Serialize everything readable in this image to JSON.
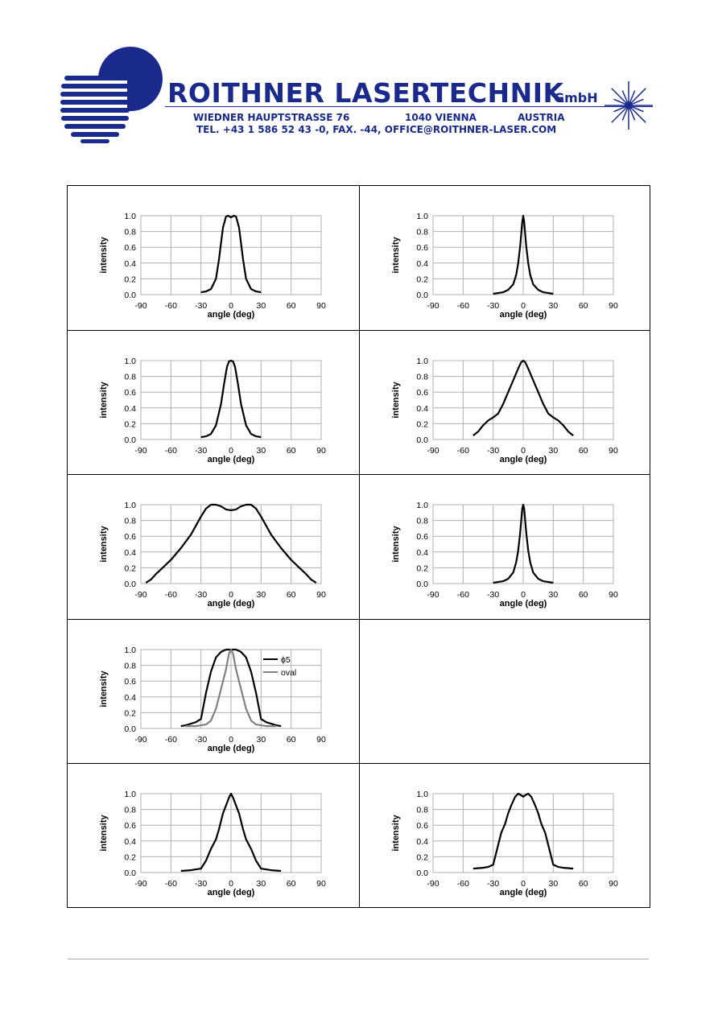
{
  "header": {
    "company": "ROITHNER LASERTECHNIK",
    "company_suffix": "GmbH",
    "street": "WIEDNER HAUPTSTRASSE 76",
    "city": "1040 VIENNA",
    "country": "AUSTRIA",
    "contact": "TEL. +43 1 586 52 43 -0, FAX. -44, OFFICE@ROITHNER-LASER.COM",
    "brand_color": "#1a2a8c"
  },
  "chart_data": [
    {
      "type": "line",
      "xlabel": "angle (deg)",
      "ylabel": "intensity",
      "xlim": [
        -90,
        90
      ],
      "ylim": [
        0,
        1.0
      ],
      "xticks": [
        "-90",
        "-60",
        "-30",
        "0",
        "30",
        "60",
        "90"
      ],
      "yticks": [
        "0.0",
        "0.2",
        "0.4",
        "0.6",
        "0.8",
        "1.0"
      ],
      "grid": true,
      "series": [
        {
          "color": "#000000",
          "x": [
            -30,
            -25,
            -20,
            -15,
            -12,
            -8,
            -5,
            -3,
            0,
            3,
            5,
            8,
            12,
            15,
            20,
            25,
            30
          ],
          "y": [
            0.03,
            0.04,
            0.07,
            0.2,
            0.45,
            0.85,
            0.99,
            1.0,
            0.98,
            1.0,
            0.99,
            0.85,
            0.45,
            0.2,
            0.07,
            0.04,
            0.03
          ]
        }
      ]
    },
    {
      "type": "line",
      "xlabel": "angle (deg)",
      "ylabel": "intensity",
      "xlim": [
        -90,
        90
      ],
      "ylim": [
        0,
        1.0
      ],
      "xticks": [
        "-90",
        "-60",
        "-30",
        "0",
        "30",
        "60",
        "90"
      ],
      "yticks": [
        "0.0",
        "0.2",
        "0.4",
        "0.6",
        "0.8",
        "1.0"
      ],
      "grid": true,
      "series": [
        {
          "color": "#000000",
          "x": [
            -30,
            -20,
            -15,
            -10,
            -7,
            -5,
            -3,
            -1,
            0,
            1,
            3,
            5,
            7,
            10,
            15,
            20,
            30
          ],
          "y": [
            0.01,
            0.03,
            0.06,
            0.13,
            0.25,
            0.4,
            0.62,
            0.92,
            1.0,
            0.92,
            0.62,
            0.4,
            0.25,
            0.13,
            0.06,
            0.03,
            0.01
          ]
        }
      ]
    },
    {
      "type": "line",
      "xlabel": "angle (deg)",
      "ylabel": "intensity",
      "xlim": [
        -90,
        90
      ],
      "ylim": [
        0,
        1.0
      ],
      "xticks": [
        "-90",
        "-60",
        "-30",
        "0",
        "30",
        "60",
        "90"
      ],
      "yticks": [
        "0.0",
        "0.2",
        "0.4",
        "0.6",
        "0.8",
        "1.0"
      ],
      "grid": true,
      "series": [
        {
          "color": "#000000",
          "x": [
            -30,
            -25,
            -20,
            -15,
            -10,
            -7,
            -4,
            -2,
            0,
            2,
            4,
            7,
            10,
            15,
            20,
            25,
            30
          ],
          "y": [
            0.03,
            0.04,
            0.07,
            0.18,
            0.45,
            0.7,
            0.92,
            0.99,
            1.0,
            0.99,
            0.92,
            0.7,
            0.45,
            0.18,
            0.07,
            0.04,
            0.03
          ]
        }
      ]
    },
    {
      "type": "line",
      "xlabel": "angle (deg)",
      "ylabel": "intensity",
      "xlim": [
        -90,
        90
      ],
      "ylim": [
        0,
        1.0
      ],
      "xticks": [
        "-90",
        "-60",
        "-30",
        "0",
        "30",
        "60",
        "90"
      ],
      "yticks": [
        "0.0",
        "0.2",
        "0.4",
        "0.6",
        "0.8",
        "1.0"
      ],
      "grid": true,
      "series": [
        {
          "color": "#000000",
          "x": [
            -50,
            -45,
            -40,
            -35,
            -30,
            -25,
            -20,
            -15,
            -10,
            -5,
            -2,
            0,
            2,
            5,
            10,
            15,
            20,
            25,
            30,
            35,
            40,
            45,
            50
          ],
          "y": [
            0.05,
            0.1,
            0.18,
            0.24,
            0.28,
            0.33,
            0.45,
            0.6,
            0.75,
            0.9,
            0.98,
            1.0,
            0.98,
            0.9,
            0.75,
            0.6,
            0.45,
            0.33,
            0.28,
            0.24,
            0.18,
            0.1,
            0.05
          ]
        }
      ]
    },
    {
      "type": "line",
      "xlabel": "angle (deg)",
      "ylabel": "intensity",
      "xlim": [
        -90,
        90
      ],
      "ylim": [
        0,
        1.0
      ],
      "xticks": [
        "-90",
        "-60",
        "-30",
        "0",
        "30",
        "60",
        "90"
      ],
      "yticks": [
        "0.0",
        "0.2",
        "0.4",
        "0.6",
        "0.8",
        "1.0"
      ],
      "grid": true,
      "series": [
        {
          "color": "#000000",
          "x": [
            -85,
            -80,
            -75,
            -70,
            -60,
            -50,
            -40,
            -30,
            -25,
            -20,
            -15,
            -10,
            -5,
            0,
            5,
            10,
            15,
            20,
            25,
            30,
            40,
            50,
            60,
            70,
            75,
            80,
            85
          ],
          "y": [
            0.01,
            0.05,
            0.12,
            0.18,
            0.3,
            0.45,
            0.62,
            0.85,
            0.95,
            1.0,
            1.0,
            0.98,
            0.94,
            0.93,
            0.94,
            0.98,
            1.0,
            1.0,
            0.95,
            0.85,
            0.62,
            0.45,
            0.3,
            0.18,
            0.12,
            0.05,
            0.01
          ]
        }
      ]
    },
    {
      "type": "line",
      "xlabel": "angle (deg)",
      "ylabel": "intensity",
      "xlim": [
        -90,
        90
      ],
      "ylim": [
        0,
        1.0
      ],
      "xticks": [
        "-90",
        "-60",
        "-30",
        "0",
        "30",
        "60",
        "90"
      ],
      "yticks": [
        "0.0",
        "0.2",
        "0.4",
        "0.6",
        "0.8",
        "1.0"
      ],
      "grid": true,
      "series": [
        {
          "color": "#000000",
          "x": [
            -30,
            -20,
            -15,
            -10,
            -7,
            -5,
            -3,
            -1,
            0,
            1,
            3,
            5,
            7,
            10,
            15,
            20,
            30
          ],
          "y": [
            0.01,
            0.03,
            0.06,
            0.14,
            0.27,
            0.42,
            0.65,
            0.95,
            1.0,
            0.95,
            0.65,
            0.42,
            0.27,
            0.14,
            0.06,
            0.03,
            0.01
          ]
        }
      ]
    },
    {
      "type": "line",
      "xlabel": "angle (deg)",
      "ylabel": "intensity",
      "xlim": [
        -90,
        90
      ],
      "ylim": [
        0,
        1.0
      ],
      "xticks": [
        "-90",
        "-60",
        "-30",
        "0",
        "30",
        "60",
        "90"
      ],
      "yticks": [
        "0.0",
        "0.2",
        "0.4",
        "0.6",
        "0.8",
        "1.0"
      ],
      "grid": true,
      "legend": "top-right",
      "series": [
        {
          "name": "ϕ5",
          "color": "#000000",
          "x": [
            -50,
            -45,
            -40,
            -35,
            -30,
            -25,
            -20,
            -15,
            -10,
            -5,
            0,
            5,
            10,
            15,
            20,
            25,
            30,
            35,
            40,
            45,
            50
          ],
          "y": [
            0.03,
            0.04,
            0.06,
            0.08,
            0.12,
            0.45,
            0.72,
            0.9,
            0.97,
            1.0,
            1.0,
            1.0,
            0.97,
            0.9,
            0.72,
            0.45,
            0.12,
            0.08,
            0.06,
            0.04,
            0.03
          ]
        },
        {
          "name": "oval",
          "color": "#808080",
          "x": [
            -45,
            -40,
            -35,
            -30,
            -25,
            -20,
            -15,
            -10,
            -5,
            -2,
            0,
            2,
            5,
            10,
            15,
            20,
            25,
            30,
            35,
            40,
            45
          ],
          "y": [
            0.03,
            0.03,
            0.03,
            0.04,
            0.05,
            0.1,
            0.25,
            0.5,
            0.75,
            0.95,
            1.0,
            0.95,
            0.75,
            0.5,
            0.25,
            0.1,
            0.05,
            0.04,
            0.03,
            0.03,
            0.03
          ]
        }
      ]
    },
    {
      "type": "line",
      "xlabel": "angle (deg)",
      "ylabel": "intensity",
      "xlim": [
        -90,
        90
      ],
      "ylim": [
        0,
        1.0
      ],
      "xticks": [
        "-90",
        "-60",
        "-30",
        "0",
        "30",
        "60",
        "90"
      ],
      "yticks": [
        "0.0",
        "0.2",
        "0.4",
        "0.6",
        "0.8",
        "1.0"
      ],
      "grid": true,
      "series": [
        {
          "color": "#000000",
          "x": [
            -50,
            -40,
            -30,
            -25,
            -20,
            -15,
            -12,
            -8,
            -5,
            -2,
            0,
            2,
            5,
            8,
            12,
            15,
            20,
            25,
            30,
            40,
            50
          ],
          "y": [
            0.02,
            0.03,
            0.05,
            0.15,
            0.3,
            0.42,
            0.55,
            0.75,
            0.85,
            0.95,
            1.0,
            0.95,
            0.85,
            0.75,
            0.55,
            0.42,
            0.3,
            0.15,
            0.05,
            0.03,
            0.02
          ]
        }
      ]
    },
    {
      "type": "line",
      "xlabel": "angle (deg)",
      "ylabel": "intensity",
      "xlim": [
        -90,
        90
      ],
      "ylim": [
        0,
        1.0
      ],
      "xticks": [
        "-90",
        "-60",
        "-30",
        "0",
        "30",
        "60",
        "90"
      ],
      "yticks": [
        "0.0",
        "0.2",
        "0.4",
        "0.6",
        "0.8",
        "1.0"
      ],
      "grid": true,
      "series": [
        {
          "color": "#000000",
          "x": [
            -50,
            -40,
            -35,
            -30,
            -28,
            -25,
            -22,
            -18,
            -15,
            -12,
            -8,
            -5,
            -2,
            0,
            2,
            5,
            8,
            12,
            15,
            18,
            22,
            25,
            28,
            30,
            35,
            40,
            50
          ],
          "y": [
            0.05,
            0.06,
            0.07,
            0.1,
            0.2,
            0.35,
            0.5,
            0.62,
            0.75,
            0.85,
            0.96,
            1.0,
            0.98,
            0.96,
            0.98,
            1.0,
            0.96,
            0.85,
            0.75,
            0.62,
            0.5,
            0.35,
            0.2,
            0.1,
            0.07,
            0.06,
            0.05
          ]
        }
      ]
    }
  ]
}
